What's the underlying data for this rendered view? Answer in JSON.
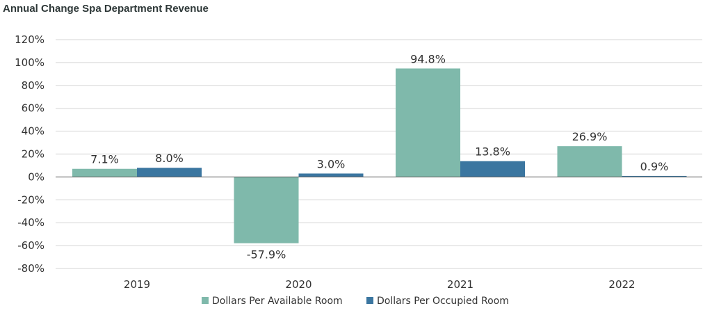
{
  "chart_data": {
    "type": "bar",
    "title": "Annual Change Spa Department Revenue",
    "categories": [
      "2019",
      "2020",
      "2021",
      "2022"
    ],
    "series": [
      {
        "name": "Dollars Per Available Room",
        "values": [
          7.1,
          -57.9,
          94.8,
          26.9
        ],
        "color": "#7fb9ab"
      },
      {
        "name": "Dollars Per Occupied Room",
        "values": [
          8.0,
          3.0,
          13.8,
          0.9
        ],
        "color": "#3b76a0"
      }
    ],
    "data_labels": [
      [
        "7.1%",
        "-57.9%",
        "94.8%",
        "26.9%"
      ],
      [
        "8.0%",
        "3.0%",
        "13.8%",
        "0.9%"
      ]
    ],
    "yticks": [
      "120%",
      "100%",
      "80%",
      "60%",
      "40%",
      "20%",
      "0%",
      "-20%",
      "-40%",
      "-60%",
      "-80%"
    ],
    "ylim": [
      -80,
      120
    ],
    "grid": true,
    "legend": "bottom"
  }
}
